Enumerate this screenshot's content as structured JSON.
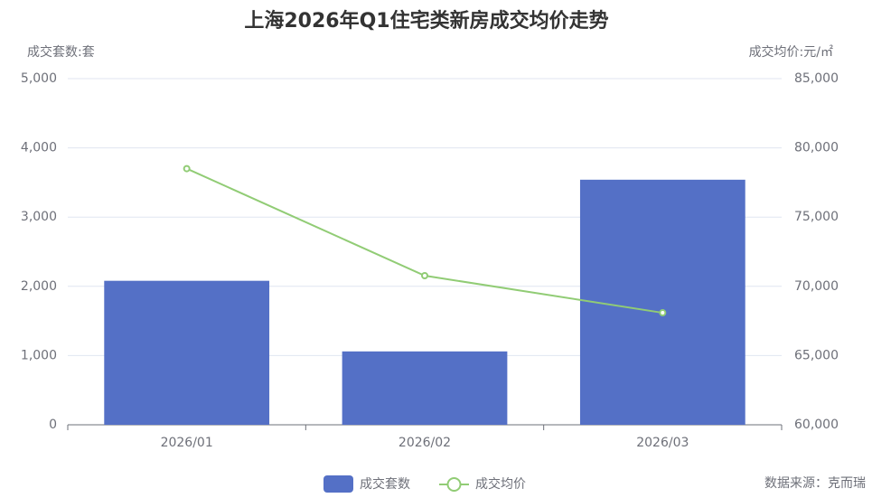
{
  "chart_data": {
    "type": "bar_line",
    "title": "上海2026年Q1住宅类新房成交均价走势",
    "y_axis_label": "成交套数:套",
    "y2_axis_label": "成交均价:元/㎡",
    "source": "数据来源：克而瑞",
    "categories": [
      "2026/01",
      "2026/02",
      "2026/03"
    ],
    "series": [
      {
        "name": "成交套数",
        "type": "bar",
        "color": "#5470c6",
        "values": [
          2080,
          1060,
          3540
        ]
      },
      {
        "name": "成交均价",
        "type": "line",
        "color": "#91cc75",
        "axis": "y2",
        "values": [
          78500,
          70770,
          68090
        ]
      }
    ],
    "ylim": [
      0,
      5000
    ],
    "yticks": [
      0,
      {
        "value": 1000,
        "label": "1,000"
      },
      {
        "value": 2000,
        "label": "2,000"
      },
      {
        "value": 3000,
        "label": "3,000"
      },
      {
        "value": 4000,
        "label": "4,000"
      },
      {
        "value": 5000,
        "label": "5,000"
      }
    ],
    "y2lim": [
      60000,
      85000
    ],
    "y2ticks": [
      {
        "value": 60000,
        "label": "60,000"
      },
      {
        "value": 65000,
        "label": "65,000"
      },
      {
        "value": 70000,
        "label": "70,000"
      },
      {
        "value": 75000,
        "label": "75,000"
      },
      {
        "value": 80000,
        "label": "80,000"
      },
      {
        "value": 85000,
        "label": "85,000"
      }
    ],
    "grid": true
  }
}
